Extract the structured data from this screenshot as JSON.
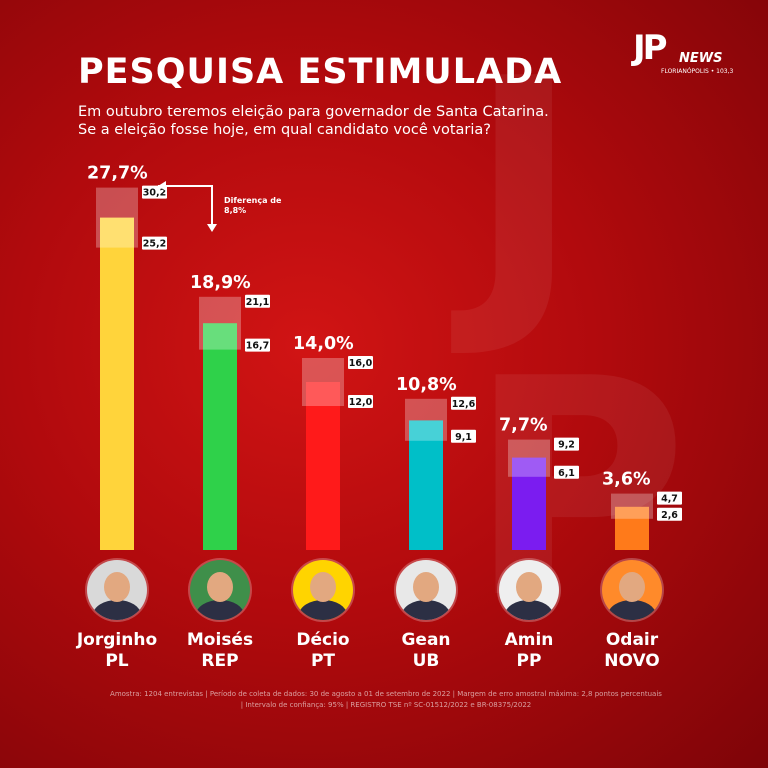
{
  "brand": {
    "logo_letters": "JP",
    "logo_word": "NEWS",
    "logo_city": "FLORIANÓPOLIS • 103,3"
  },
  "header": {
    "title": "PESQUISA ESTIMULADA",
    "subtitle_line1": "Em outubro teremos eleição para governador de Santa Catarina.",
    "subtitle_line2": "Se a eleição fosse hoje, em qual candidato você votaria?"
  },
  "annotation": {
    "line1": "Diferença de",
    "line2": "8,8%"
  },
  "chart_data": {
    "type": "bar",
    "categories": [
      "Jorginho PL",
      "Moisés REP",
      "Décio PT",
      "Gean UB",
      "Amin PP",
      "Odair NOVO"
    ],
    "values": [
      27.7,
      18.9,
      14.0,
      10.8,
      7.7,
      3.6
    ],
    "value_labels": [
      "27,7%",
      "18,9%",
      "14,0%",
      "10,8%",
      "7,7%",
      "3,6%"
    ],
    "upper_bounds": [
      30.2,
      21.1,
      16.0,
      12.6,
      9.2,
      4.7
    ],
    "upper_labels": [
      "30,2",
      "21,1",
      "16,0",
      "12,6",
      "9,2",
      "4,7"
    ],
    "lower_bounds": [
      25.2,
      16.7,
      12.0,
      9.1,
      6.1,
      2.6
    ],
    "lower_labels": [
      "25,2",
      "16,7",
      "12,0",
      "9,1",
      "6,1",
      "2,6"
    ],
    "colors": [
      "#ffd43b",
      "#2fd14a",
      "#ff1a1a",
      "#00bfc8",
      "#7b1cf0",
      "#ff7a1a"
    ],
    "ylim": [
      0,
      30
    ],
    "grid": false,
    "legend": "none"
  },
  "candidates": [
    {
      "name": "Jorginho",
      "party": "PL",
      "avatar_bg": "#d9d9d9",
      "icon": "candidate-photo"
    },
    {
      "name": "Moisés",
      "party": "REP",
      "avatar_bg": "#3f8f4a",
      "icon": "candidate-photo"
    },
    {
      "name": "Décio",
      "party": "PT",
      "avatar_bg": "#ffd400",
      "icon": "candidate-photo"
    },
    {
      "name": "Gean",
      "party": "UB",
      "avatar_bg": "#e8e8e8",
      "icon": "candidate-photo"
    },
    {
      "name": "Amin",
      "party": "PP",
      "avatar_bg": "#efefef",
      "icon": "candidate-photo"
    },
    {
      "name": "Odair",
      "party": "NOVO",
      "avatar_bg": "#ff8a2a",
      "icon": "candidate-photo"
    }
  ],
  "footnote": {
    "line1": "Amostra: 1204 entrevistas | Período de coleta de dados: 30 de agosto a 01 de setembro de 2022 | Margem de erro amostral máxima: 2,8 pontos percentuais",
    "line2": "| Intervalo de confiança: 95% | REGISTRO TSE nº SC-01512/2022 e BR-08375/2022"
  }
}
